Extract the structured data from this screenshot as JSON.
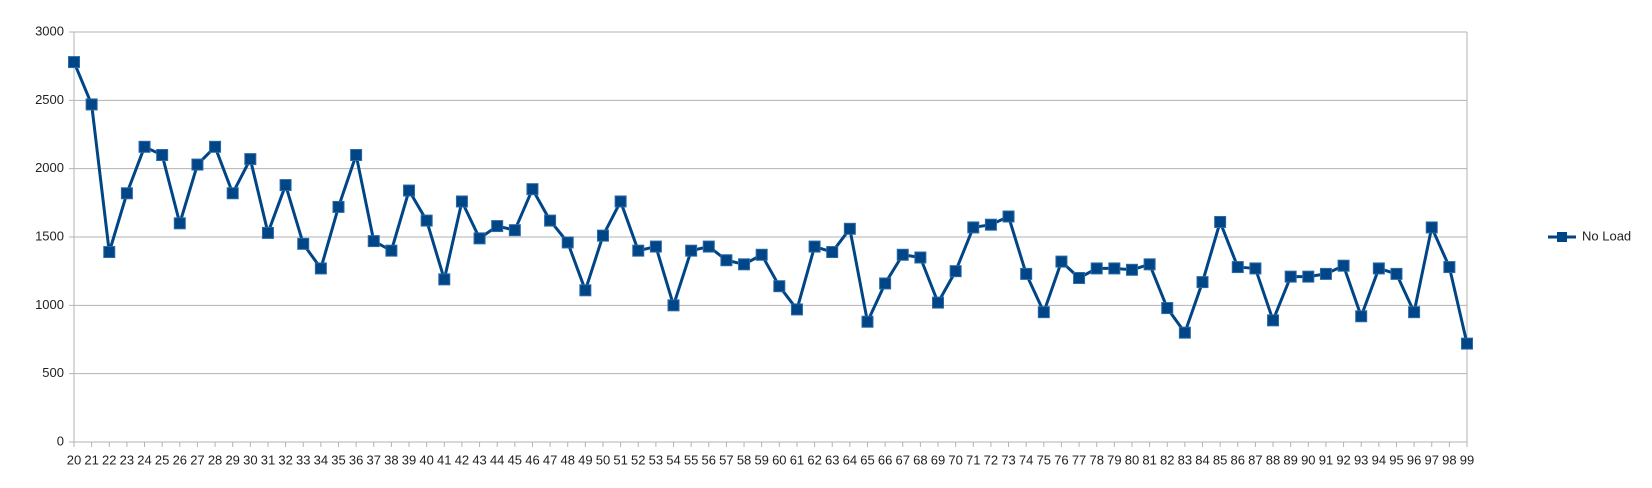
{
  "chart_data": {
    "type": "line",
    "categories": [
      "20",
      "21",
      "22",
      "23",
      "24",
      "25",
      "26",
      "27",
      "28",
      "29",
      "30",
      "31",
      "32",
      "33",
      "34",
      "35",
      "36",
      "37",
      "38",
      "39",
      "40",
      "41",
      "42",
      "43",
      "44",
      "45",
      "46",
      "47",
      "48",
      "49",
      "50",
      "51",
      "52",
      "53",
      "54",
      "55",
      "56",
      "57",
      "58",
      "59",
      "60",
      "61",
      "62",
      "63",
      "64",
      "65",
      "66",
      "67",
      "68",
      "69",
      "70",
      "71",
      "72",
      "73",
      "74",
      "75",
      "76",
      "77",
      "78",
      "79",
      "80",
      "81",
      "82",
      "83",
      "84",
      "85",
      "86",
      "87",
      "88",
      "89",
      "90",
      "91",
      "92",
      "93",
      "94",
      "95",
      "96",
      "97",
      "98",
      "99"
    ],
    "series": [
      {
        "name": "No Load",
        "color": "#004586",
        "values": [
          2780,
          2470,
          1390,
          1820,
          2160,
          2100,
          1600,
          2030,
          2160,
          1820,
          2070,
          1530,
          1880,
          1450,
          1270,
          1720,
          2100,
          1470,
          1400,
          1840,
          1620,
          1190,
          1760,
          1490,
          1580,
          1550,
          1850,
          1620,
          1460,
          1110,
          1510,
          1760,
          1400,
          1430,
          1000,
          1400,
          1430,
          1330,
          1300,
          1370,
          1140,
          970,
          1430,
          1390,
          1560,
          880,
          1160,
          1370,
          1350,
          1020,
          1250,
          1570,
          1590,
          1650,
          1230,
          950,
          1320,
          1200,
          1270,
          1270,
          1260,
          1300,
          980,
          800,
          1170,
          1610,
          1280,
          1270,
          890,
          1210,
          1210,
          1230,
          1290,
          920,
          1270,
          1230,
          950,
          1570,
          1280,
          720
        ]
      }
    ],
    "ylim": [
      0,
      3000
    ],
    "yticks": [
      0,
      500,
      1000,
      1500,
      2000,
      2500,
      3000
    ],
    "grid": true,
    "legend": "right"
  }
}
